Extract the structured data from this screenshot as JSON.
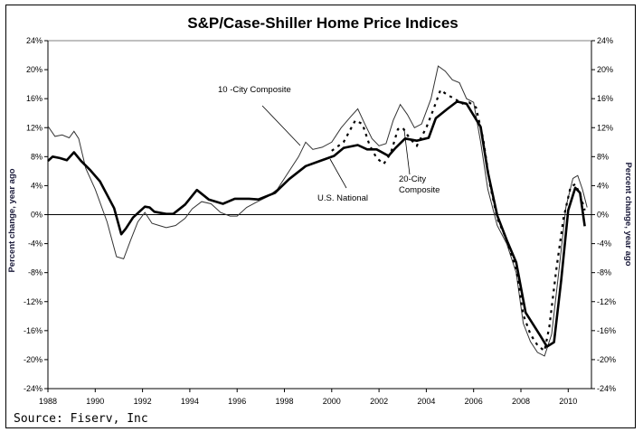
{
  "chart_data": {
    "type": "line",
    "title": "S&P/Case-Shiller Home Price Indices",
    "xlabel": "",
    "ylabel_left": "Percent change, year ago",
    "ylabel_right": "Percent change, year ago",
    "xlim": [
      1988,
      2010.9
    ],
    "ylim": [
      -24,
      24
    ],
    "x_ticks": [
      1988,
      1990,
      1992,
      1994,
      1996,
      1998,
      2000,
      2002,
      2004,
      2006,
      2008,
      2010
    ],
    "x_tick_labels": [
      "1988",
      "1990",
      "1992",
      "1994",
      "1996",
      "1998",
      "2000",
      "2002",
      "2004",
      "2006",
      "2008",
      "2010"
    ],
    "y_ticks": [
      24,
      20,
      16,
      12,
      8,
      4,
      0,
      -4,
      -8,
      -12,
      -16,
      -20,
      -24
    ],
    "y_tick_labels": [
      "24%",
      "20%",
      "16%",
      "12%",
      "8%",
      "4%",
      "0%",
      "-4%",
      "-8%",
      "-12%",
      "-16%",
      "-20%",
      "-24%"
    ],
    "grid": false,
    "zero_line": true,
    "legend": "none (inline annotations)",
    "series": [
      {
        "name": "U.S. National",
        "style": "thick-solid",
        "x": [
          1988.0,
          1988.2,
          1988.5,
          1988.8,
          1989.1,
          1989.4,
          1989.8,
          1990.2,
          1990.8,
          1991.1,
          1991.3,
          1991.6,
          1992.1,
          1992.3,
          1992.5,
          1993.0,
          1993.3,
          1993.8,
          1994.3,
          1994.8,
          1995.4,
          1995.9,
          1996.5,
          1996.9,
          1997.6,
          1998.2,
          1998.9,
          1999.5,
          2000.1,
          2000.5,
          2001.1,
          2001.5,
          2001.9,
          2002.4,
          2002.7,
          2003.1,
          2003.6,
          2004.1,
          2004.4,
          2004.9,
          2005.3,
          2005.7,
          2006.3,
          2006.6,
          2007.0,
          2007.4,
          2007.8,
          2008.2,
          2008.8,
          2009.1,
          2009.4,
          2009.7,
          2010.0,
          2010.3,
          2010.5,
          2010.7
        ],
        "values": [
          7.4,
          8.0,
          7.8,
          7.5,
          8.6,
          7.4,
          6.1,
          4.6,
          0.9,
          -2.7,
          -1.9,
          -0.4,
          1.1,
          1.0,
          0.4,
          0.1,
          0.1,
          1.4,
          3.4,
          2.1,
          1.5,
          2.2,
          2.2,
          2.1,
          3.0,
          4.9,
          6.7,
          7.4,
          8.1,
          9.2,
          9.6,
          9.0,
          9.0,
          8.1,
          9.2,
          10.5,
          10.2,
          10.6,
          13.3,
          14.6,
          15.6,
          15.3,
          12.1,
          5.9,
          -0.1,
          -3.5,
          -6.6,
          -13.5,
          -16.6,
          -18.2,
          -17.6,
          -9.1,
          0.6,
          3.7,
          3.0,
          -1.6
        ]
      },
      {
        "name": "10 -City Composite",
        "style": "thin-solid",
        "x": [
          1988.0,
          1988.3,
          1988.6,
          1988.9,
          1989.1,
          1989.3,
          1989.6,
          1990.0,
          1990.5,
          1990.9,
          1991.2,
          1991.5,
          1991.8,
          1992.1,
          1992.4,
          1992.7,
          1993.0,
          1993.4,
          1993.8,
          1994.1,
          1994.5,
          1994.9,
          1995.3,
          1995.7,
          1996.0,
          1996.4,
          1996.8,
          1997.3,
          1997.7,
          1998.1,
          1998.6,
          1998.9,
          1999.2,
          1999.6,
          2000.0,
          2000.4,
          2000.8,
          2001.1,
          2001.4,
          2001.7,
          2002.0,
          2002.3,
          2002.6,
          2002.9,
          2003.2,
          2003.5,
          2003.8,
          2004.2,
          2004.5,
          2004.8,
          2005.1,
          2005.4,
          2005.7,
          2006.0,
          2006.3,
          2006.6,
          2007.0,
          2007.4,
          2007.8,
          2008.1,
          2008.4,
          2008.7,
          2009.0,
          2009.3,
          2009.6,
          2009.9,
          2010.2,
          2010.4,
          2010.6,
          2010.8
        ],
        "values": [
          12.2,
          10.8,
          11.0,
          10.6,
          11.5,
          10.5,
          6.4,
          3.5,
          -1.0,
          -5.8,
          -6.1,
          -3.5,
          -1.0,
          0.3,
          -1.2,
          -1.5,
          -1.8,
          -1.5,
          -0.5,
          0.8,
          1.8,
          1.5,
          0.3,
          -0.2,
          -0.2,
          1.0,
          1.7,
          2.5,
          3.5,
          5.5,
          8.0,
          10.0,
          9.0,
          9.3,
          10.0,
          12.0,
          13.5,
          14.6,
          12.5,
          10.5,
          9.5,
          9.8,
          13.0,
          15.2,
          13.8,
          12.0,
          12.5,
          16.0,
          20.5,
          19.8,
          18.6,
          18.2,
          16.0,
          15.5,
          10.0,
          3.5,
          -1.5,
          -4.0,
          -8.0,
          -15.0,
          -17.5,
          -19.0,
          -19.5,
          -16.5,
          -8.0,
          1.0,
          5.0,
          5.4,
          3.5,
          1.0
        ]
      },
      {
        "name": "20-City Composite",
        "style": "dashed",
        "x": [
          2000.0,
          2000.5,
          2001.0,
          2001.3,
          2001.6,
          2001.9,
          2002.2,
          2002.5,
          2002.8,
          2003.0,
          2003.3,
          2003.6,
          2004.0,
          2004.3,
          2004.6,
          2004.9,
          2005.2,
          2005.5,
          2005.8,
          2006.1,
          2006.4,
          2006.7,
          2007.0,
          2007.4,
          2007.8,
          2008.1,
          2008.4,
          2008.7,
          2009.0,
          2009.2,
          2009.5,
          2009.8,
          2010.1,
          2010.3,
          2010.5,
          2010.7
        ],
        "values": [
          8.8,
          10.0,
          13.0,
          12.5,
          9.6,
          7.8,
          7.0,
          8.5,
          11.8,
          12.0,
          10.5,
          9.5,
          12.0,
          14.5,
          17.2,
          16.5,
          16.0,
          15.3,
          15.5,
          14.8,
          10.5,
          4.0,
          -0.5,
          -3.5,
          -7.5,
          -13.8,
          -16.5,
          -18.0,
          -18.8,
          -15.5,
          -7.5,
          -0.5,
          3.8,
          4.2,
          2.8,
          0.6
        ]
      }
    ],
    "annotations": [
      {
        "text": "10 -City Composite",
        "points_to": "10 -City Composite"
      },
      {
        "text": "U.S. National",
        "points_to": "U.S. National"
      },
      {
        "text_lines": [
          "20-City",
          "Composite"
        ],
        "points_to": "20-City Composite"
      }
    ],
    "source": "Source: Fiserv, Inc"
  }
}
